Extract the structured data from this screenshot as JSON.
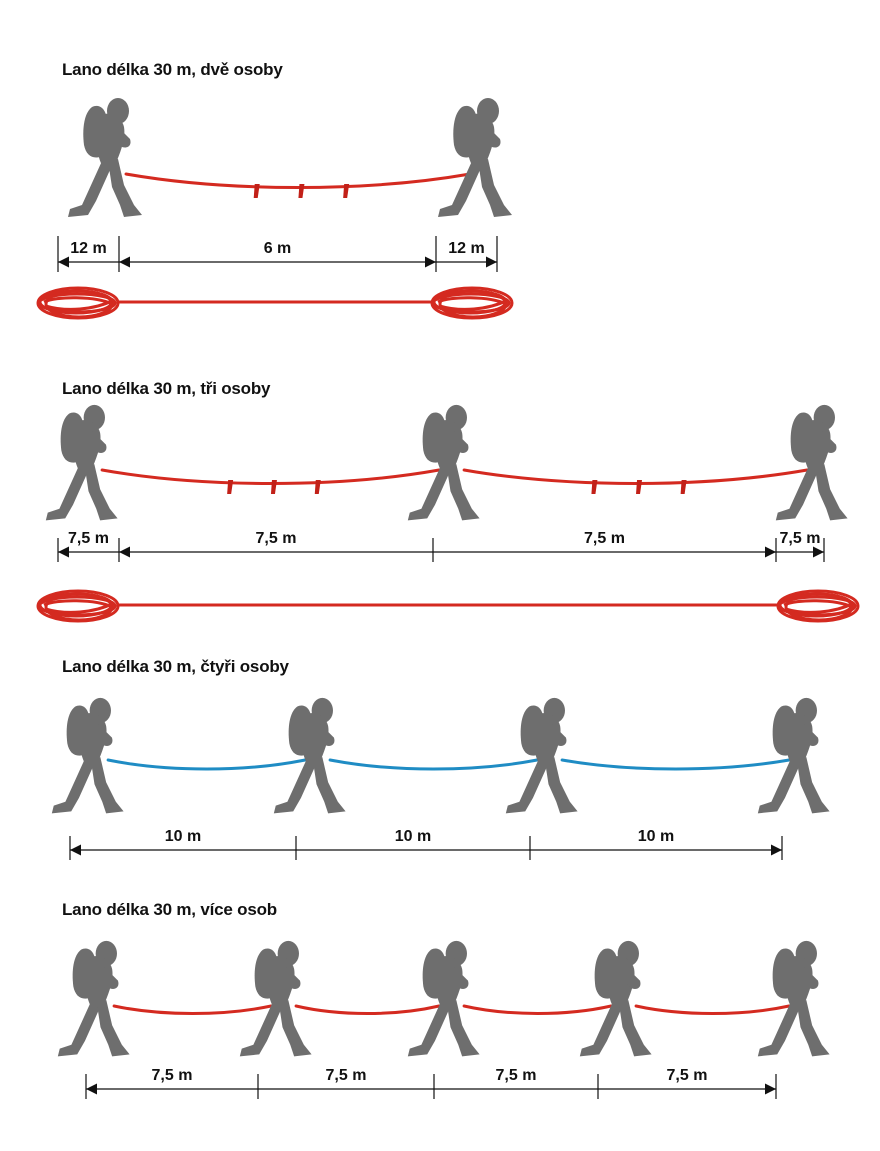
{
  "colors": {
    "figure": "#6e6e6e",
    "rope_red": "#d42a20",
    "rope_blue": "#1f8cc4",
    "knot": "#c22018",
    "dimension": "#111111"
  },
  "icons": {
    "person": "climber-silhouette-icon",
    "coil": "rope-coil-icon"
  },
  "sections": [
    {
      "id": "two",
      "heading": "Lano délka 30 m, dvě osoby",
      "people": 2,
      "rope_color": "red",
      "knots": 3,
      "segments": [
        "12 m",
        "6 m",
        "12 m"
      ]
    },
    {
      "id": "three",
      "heading": "Lano délka 30 m, tři osoby",
      "people": 3,
      "rope_color": "red",
      "knots": 3,
      "segments": [
        "7,5 m",
        "7,5 m",
        "7,5 m",
        "7,5 m"
      ]
    },
    {
      "id": "four",
      "heading": "Lano délka 30 m, čtyři osoby",
      "people": 4,
      "rope_color": "blue",
      "knots": 0,
      "segments": [
        "10 m",
        "10 m",
        "10 m"
      ]
    },
    {
      "id": "more",
      "heading": "Lano délka 30 m, více osob",
      "people": 5,
      "rope_color": "red",
      "knots": 0,
      "segments": [
        "7,5 m",
        "7,5 m",
        "7,5 m",
        "7,5 m"
      ]
    }
  ]
}
